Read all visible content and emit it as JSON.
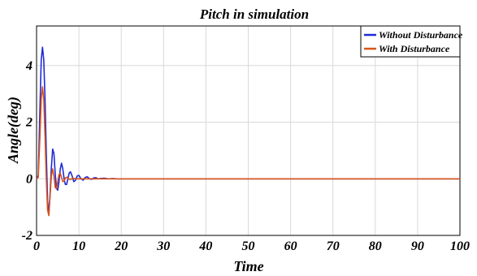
{
  "chart_data": {
    "type": "line",
    "title": "Pitch in simulation",
    "xlabel": "Time",
    "ylabel": "Angle(deg)",
    "xlim": [
      0,
      100
    ],
    "ylim": [
      -2,
      5.4
    ],
    "xticks": [
      "0",
      "10",
      "20",
      "30",
      "40",
      "50",
      "60",
      "70",
      "80",
      "90",
      "100"
    ],
    "yticks": [
      "-2",
      "0",
      "2",
      "4"
    ],
    "grid": true,
    "legend_position": "top-right",
    "series": [
      {
        "name": "Without Disturbance",
        "color": "#1f2bd6",
        "x": [
          0,
          0.4,
          0.8,
          1.1,
          1.4,
          1.7,
          2.0,
          2.3,
          2.6,
          2.9,
          3.2,
          3.5,
          3.8,
          4.1,
          4.4,
          4.7,
          5.0,
          5.3,
          5.6,
          5.9,
          6.2,
          6.5,
          6.8,
          7.1,
          7.4,
          7.7,
          8.0,
          8.4,
          8.8,
          9.2,
          9.6,
          10.0,
          10.5,
          11.0,
          11.5,
          12.0,
          12.5,
          13.0,
          13.5,
          14.0,
          14.5,
          15.0,
          16.0,
          17.0,
          18.0,
          19.0,
          20.0,
          100
        ],
        "y": [
          0,
          0.1,
          2.5,
          4.2,
          4.65,
          4.2,
          2.8,
          0.9,
          -0.8,
          -1.25,
          -0.5,
          0.4,
          1.05,
          0.9,
          0.2,
          -0.35,
          -0.4,
          -0.1,
          0.35,
          0.55,
          0.35,
          0.0,
          -0.2,
          -0.2,
          0.0,
          0.2,
          0.25,
          0.1,
          -0.1,
          -0.05,
          0.1,
          0.12,
          0.0,
          -0.05,
          0.05,
          0.07,
          0.0,
          -0.02,
          0.03,
          0.04,
          0.0,
          0.01,
          0.02,
          0.0,
          0.01,
          0.0,
          0.0,
          0.0
        ]
      },
      {
        "name": "With Disturbance",
        "color": "#d95319",
        "x": [
          0,
          0.4,
          0.8,
          1.1,
          1.4,
          1.7,
          2.0,
          2.3,
          2.6,
          2.9,
          3.2,
          3.5,
          3.8,
          4.1,
          4.4,
          4.7,
          5.0,
          5.3,
          5.6,
          5.9,
          6.2,
          6.5,
          6.8,
          7.2,
          7.6,
          8.0,
          8.5,
          9.0,
          9.5,
          10.0,
          11.0,
          12.0,
          13.0,
          100
        ],
        "y": [
          0,
          0.05,
          1.5,
          2.8,
          3.25,
          2.8,
          1.5,
          0.0,
          -1.1,
          -1.3,
          -0.6,
          0.1,
          0.35,
          0.1,
          -0.3,
          -0.35,
          -0.1,
          0.15,
          0.2,
          0.05,
          -0.1,
          -0.08,
          0.03,
          0.06,
          0.0,
          -0.03,
          0.02,
          0.01,
          0.0,
          0.0,
          0.0,
          0.0,
          0.0,
          0.0
        ]
      }
    ]
  }
}
